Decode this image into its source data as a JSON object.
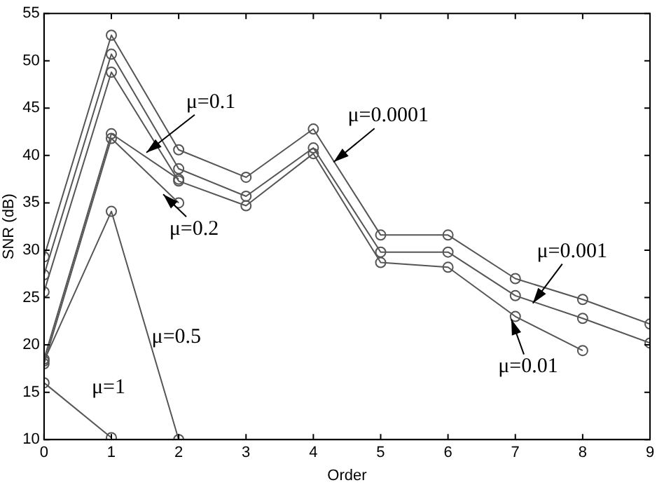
{
  "chart_data": {
    "type": "line",
    "xlabel": "Order",
    "ylabel": "SNR (dB)",
    "x": [
      0,
      1,
      2,
      3,
      4,
      5,
      6,
      7,
      8,
      9
    ],
    "series": [
      {
        "color": "#555555",
        "values": [
          29.3,
          52.7,
          40.6,
          37.7,
          42.8,
          31.6,
          31.6,
          27.0,
          24.8,
          22.2
        ]
      },
      {
        "color": "#555555",
        "values": [
          27.4,
          50.7,
          38.6,
          35.7,
          40.8,
          29.8,
          29.8,
          25.2,
          22.8,
          20.2
        ]
      },
      {
        "color": "#555555",
        "values": [
          25.6,
          48.8,
          37.3,
          34.7,
          40.2,
          28.7,
          28.2,
          23.0,
          19.4,
          null
        ]
      },
      {
        "color": "#555555",
        "values": [
          18.5,
          42.3,
          37.5,
          null,
          null,
          null,
          null,
          null,
          null,
          null
        ]
      },
      {
        "color": "#555555",
        "values": [
          18.0,
          41.8,
          35.0,
          null,
          null,
          null,
          null,
          null,
          null,
          null
        ]
      },
      {
        "color": "#555555",
        "values": [
          18.3,
          34.1,
          10.0,
          null,
          null,
          null,
          null,
          null,
          null,
          null
        ]
      },
      {
        "color": "#555555",
        "values": [
          16.0,
          10.2,
          null,
          null,
          null,
          null,
          null,
          null,
          null,
          null
        ]
      }
    ],
    "xlim": [
      0,
      9
    ],
    "xticks": [
      0,
      1,
      2,
      3,
      4,
      5,
      6,
      7,
      8,
      9
    ],
    "ylim": [
      10,
      55
    ],
    "yticks": [
      10,
      15,
      20,
      25,
      30,
      35,
      40,
      45,
      50,
      55
    ],
    "marker": "circle",
    "line_style": "solid",
    "grid": false,
    "legend": false,
    "annotations": [
      {
        "text": "μ=0.1",
        "x": 1.52,
        "y": 40.3
      },
      {
        "text": "μ=0.2",
        "x": 1.77,
        "y": 35.9
      },
      {
        "text": "μ=0.5",
        "x": 1.55,
        "y": 20.8
      },
      {
        "text": "μ=1",
        "x": 0.5,
        "y": 13.1
      },
      {
        "text": "μ=0.0001",
        "x": 4.3,
        "y": 39.3
      },
      {
        "text": "μ=0.001",
        "x": 7.26,
        "y": 24.4
      },
      {
        "text": "μ=0.01",
        "x": 6.94,
        "y": 22.7
      }
    ]
  }
}
